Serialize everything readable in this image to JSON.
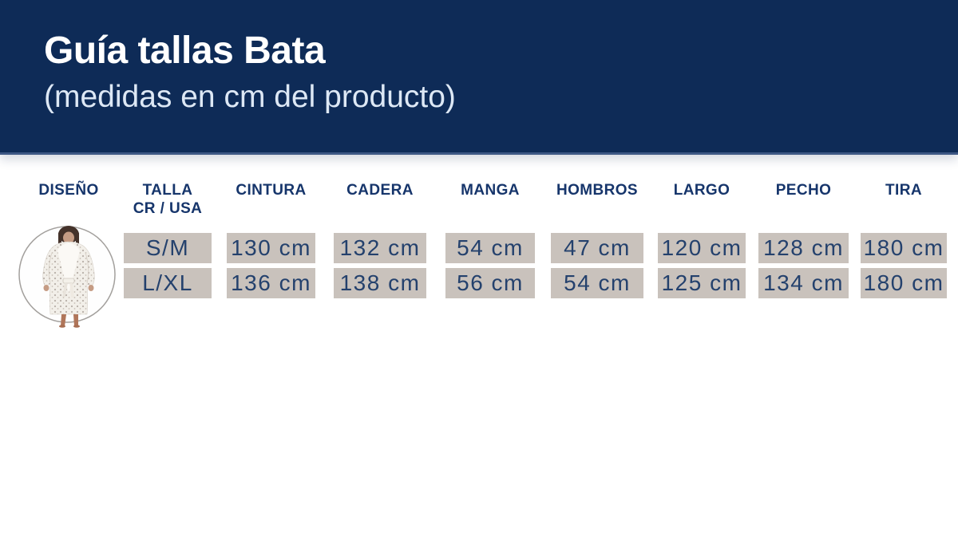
{
  "banner": {
    "title": "Guía tallas Bata",
    "subtitle": "(medidas en cm del producto)"
  },
  "colors": {
    "banner_bg": "#0e2b57",
    "header_text": "#16356b",
    "cell_bg": "#c9c2bc",
    "cell_text": "#24416d"
  },
  "table": {
    "design_header": "DISEÑO",
    "design_image": "robe-model-photo",
    "size_rows": [
      "S/M",
      "L/XL"
    ],
    "columns": [
      {
        "id": "talla",
        "header_lines": [
          "TALLA",
          "CR / USA"
        ],
        "values": [
          "S/M",
          "L/XL"
        ]
      },
      {
        "id": "cintura",
        "header_lines": [
          "CINTURA"
        ],
        "values": [
          "130 cm",
          "136 cm"
        ]
      },
      {
        "id": "cadera",
        "header_lines": [
          "CADERA"
        ],
        "values": [
          "132 cm",
          "138 cm"
        ]
      },
      {
        "id": "manga",
        "header_lines": [
          "MANGA"
        ],
        "values": [
          "54 cm",
          "56 cm"
        ]
      },
      {
        "id": "hombros",
        "header_lines": [
          "HOMBROS"
        ],
        "values": [
          "47 cm",
          "54 cm"
        ]
      },
      {
        "id": "largo",
        "header_lines": [
          "LARGO"
        ],
        "values": [
          "120 cm",
          "125 cm"
        ]
      },
      {
        "id": "pecho",
        "header_lines": [
          "PECHO"
        ],
        "values": [
          "128 cm",
          "134 cm"
        ]
      },
      {
        "id": "tira",
        "header_lines": [
          "TIRA"
        ],
        "values": [
          "180 cm",
          "180 cm"
        ]
      }
    ]
  },
  "chart_data": {
    "type": "table",
    "title": "Guía tallas Bata",
    "subtitle": "(medidas en cm del producto)",
    "columns": [
      "DISEÑO",
      "TALLA CR / USA",
      "CINTURA",
      "CADERA",
      "MANGA",
      "HOMBROS",
      "LARGO",
      "PECHO",
      "TIRA"
    ],
    "rows": [
      [
        "(foto bata)",
        "S/M",
        "130 cm",
        "132 cm",
        "54 cm",
        "47 cm",
        "120 cm",
        "128 cm",
        "180 cm"
      ],
      [
        "(foto bata)",
        "L/XL",
        "136 cm",
        "138 cm",
        "56 cm",
        "54 cm",
        "125 cm",
        "134 cm",
        "180 cm"
      ]
    ]
  }
}
